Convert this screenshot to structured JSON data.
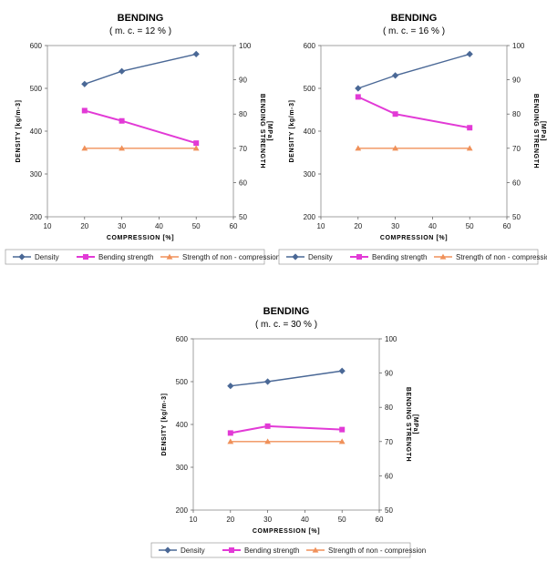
{
  "legend": {
    "density": "Density",
    "bending": "Bending strength",
    "nonc": "Strength of non - compression"
  },
  "colors": {
    "density": "#4a6896",
    "bending": "#e23ad6",
    "nonc": "#f0915a"
  },
  "chart_data": [
    {
      "type": "line",
      "title": "BENDING",
      "subtitle": "( m. c. = 12 % )",
      "xlabel": "COMPRESSION  [%]",
      "ylabel": "DENSITY  [kg/m-3]",
      "y2label": [
        "BENDING  STRENGTH",
        "[MPa]"
      ],
      "xlim": [
        10,
        60
      ],
      "xticks": [
        10,
        20,
        30,
        40,
        50,
        60
      ],
      "ylim": [
        200,
        600
      ],
      "yticks": [
        200,
        300,
        400,
        500,
        600
      ],
      "y2lim": [
        50,
        100
      ],
      "y2ticks": [
        50,
        60,
        70,
        80,
        90,
        100
      ],
      "x": [
        20,
        30,
        50
      ],
      "series": [
        {
          "name": "Density",
          "axis": "left",
          "values": [
            510,
            540,
            580
          ]
        },
        {
          "name": "Bending strength",
          "axis": "right",
          "values": [
            81,
            78,
            71.5
          ]
        },
        {
          "name": "Strength of non - compression",
          "axis": "right",
          "values": [
            70,
            70,
            70
          ]
        }
      ],
      "legend_position": "bottom"
    },
    {
      "type": "line",
      "title": "BENDING",
      "subtitle": "( m. c. = 16 % )",
      "xlabel": "COMPRESSION  [%]",
      "ylabel": "DENSITY  [kg/m-3]",
      "y2label": [
        "BENDING  STRENGTH",
        "[MPa]"
      ],
      "xlim": [
        10,
        60
      ],
      "xticks": [
        10,
        20,
        30,
        40,
        50,
        60
      ],
      "ylim": [
        200,
        600
      ],
      "yticks": [
        200,
        300,
        400,
        500,
        600
      ],
      "y2lim": [
        50,
        100
      ],
      "y2ticks": [
        50,
        60,
        70,
        80,
        90,
        100
      ],
      "x": [
        20,
        30,
        50
      ],
      "series": [
        {
          "name": "Density",
          "axis": "left",
          "values": [
            500,
            530,
            580
          ]
        },
        {
          "name": "Bending strength",
          "axis": "right",
          "values": [
            85,
            80,
            76
          ]
        },
        {
          "name": "Strength of non - compression",
          "axis": "right",
          "values": [
            70,
            70,
            70
          ]
        }
      ],
      "legend_position": "bottom"
    },
    {
      "type": "line",
      "title": "BENDING",
      "subtitle": "( m. c. = 30 % )",
      "xlabel": "COMPRESSION  [%]",
      "ylabel": "DENSITY  [kg/m-3]",
      "y2label": [
        "BENDING  STRENGTH",
        "[MPa]"
      ],
      "xlim": [
        10,
        60
      ],
      "xticks": [
        10,
        20,
        30,
        40,
        50,
        60
      ],
      "ylim": [
        200,
        600
      ],
      "yticks": [
        200,
        300,
        400,
        500,
        600
      ],
      "y2lim": [
        50,
        100
      ],
      "y2ticks": [
        50,
        60,
        70,
        80,
        90,
        100
      ],
      "x": [
        20,
        30,
        50
      ],
      "series": [
        {
          "name": "Density",
          "axis": "left",
          "values": [
            490,
            500,
            525
          ]
        },
        {
          "name": "Bending strength",
          "axis": "right",
          "values": [
            72.5,
            74.5,
            73.5
          ]
        },
        {
          "name": "Strength of non - compression",
          "axis": "right",
          "values": [
            70,
            70,
            70
          ]
        }
      ],
      "legend_position": "bottom"
    }
  ]
}
